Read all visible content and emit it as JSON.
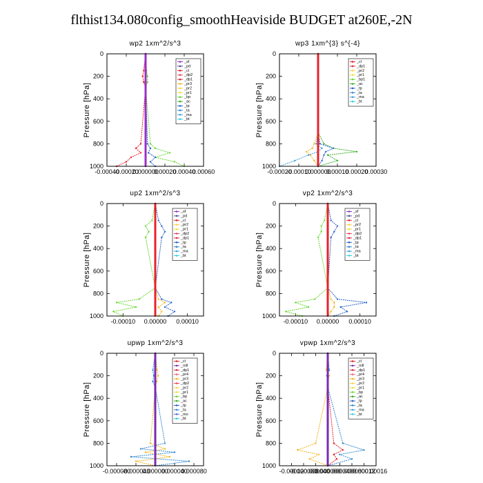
{
  "title": "flthist134.080config_smoothHeaviside  BUDGET at260E,-2N",
  "colors": {
    "sf": "#9a2fc8",
    "pd": "#4a4a9a",
    "cl": "#e8202a",
    "dp2": "#f04060",
    "dp1": "#d82840",
    "pr3": "#f0b820",
    "pr2": "#ffd040",
    "pr1": "#e8e040",
    "bp": "#68d830",
    "ac": "#38b028",
    "tp": "#2860c8",
    "ta": "#3088d0",
    "ma": "#40a0e0",
    "bt": "#30d0e0",
    "mfl": "#7a2ab0",
    "pr4": "#f06878",
    "mo": "#5868d8"
  },
  "chart_data": [
    {
      "name": "wp2",
      "type": "line",
      "title": "wp2   1xm^2/s^3",
      "ylabel": "Pressure [hPa]",
      "ylim": [
        1000,
        0
      ],
      "xlim": [
        -0.0004,
        0.0006
      ],
      "yticks": [
        "0",
        "200",
        "400",
        "600",
        "800",
        "1000"
      ],
      "xticks": [
        "-0.00040",
        "-0.00020",
        "0.000000",
        "0.00020",
        "0.00040",
        "0.00060"
      ],
      "legend": [
        "_sf",
        "_pd",
        "_cl",
        "_dp2",
        "_dp1",
        "_pr3",
        "_pr2",
        "_pr1",
        "_bp",
        "_ac",
        "_tp",
        "_ta",
        "_ma",
        "_bt"
      ],
      "series": [
        {
          "key": "cl",
          "x": [
            0,
            -2e-05,
            -3e-05,
            -2e-05,
            0,
            -5e-05,
            -0.0001,
            -5e-05,
            -0.00015,
            -0.0002,
            -0.0003
          ],
          "y": [
            0,
            150,
            200,
            250,
            300,
            800,
            840,
            880,
            920,
            960,
            1000
          ]
        },
        {
          "key": "bp",
          "x": [
            0,
            1e-05,
            2e-05,
            2e-05,
            0,
            5e-05,
            0.0001,
            0.00025,
            0.0001,
            0.0003,
            0.0004
          ],
          "y": [
            0,
            150,
            200,
            250,
            300,
            800,
            840,
            880,
            920,
            960,
            1000
          ]
        },
        {
          "key": "tp",
          "x": [
            0,
            0,
            0,
            0,
            0,
            2e-05,
            5e-05,
            3e-05,
            0.0001,
            5e-05,
            0.0001
          ],
          "y": [
            0,
            150,
            200,
            250,
            300,
            800,
            840,
            880,
            920,
            960,
            1000
          ]
        },
        {
          "key": "sf",
          "x": [
            0,
            0,
            0,
            0,
            0,
            0,
            0,
            0,
            0,
            0,
            0
          ],
          "y": [
            0,
            150,
            200,
            250,
            300,
            800,
            840,
            880,
            920,
            960,
            1000
          ]
        }
      ]
    },
    {
      "name": "wp3",
      "type": "line",
      "title": "wp3   1xm^{3} s^{-4}",
      "ylabel": "Pressure [hPa]",
      "ylim": [
        1000,
        0
      ],
      "xlim": [
        -0.0002,
        0.0003
      ],
      "yticks": [
        "0",
        "200",
        "400",
        "600",
        "800",
        "1000"
      ],
      "xticks": [
        "-0.00020",
        "-0.00010",
        "0.000000",
        "0.00010",
        "0.00020",
        "0.00030"
      ],
      "legend": [
        "_cl",
        "_dp1",
        "_pr2",
        "_pr1",
        "_bp1",
        "_ac",
        "_tp",
        "_ta",
        "_ma",
        "_bt"
      ],
      "series": [
        {
          "key": "pr3",
          "x": [
            0,
            0,
            0,
            0,
            -2e-05,
            -3e-05,
            -6e-05,
            -4e-05,
            -2e-05,
            0
          ],
          "y": [
            0,
            200,
            400,
            700,
            800,
            840,
            870,
            900,
            950,
            1000
          ]
        },
        {
          "key": "ac",
          "x": [
            0,
            0,
            0,
            0,
            3e-05,
            8e-05,
            0.0002,
            5e-05,
            0.0001,
            0
          ],
          "y": [
            0,
            200,
            400,
            700,
            800,
            840,
            870,
            900,
            950,
            1000
          ]
        },
        {
          "key": "tp",
          "x": [
            0,
            0,
            0,
            0,
            1e-05,
            8e-05,
            4e-05,
            3e-05,
            2e-05,
            0
          ],
          "y": [
            0,
            200,
            400,
            700,
            800,
            840,
            870,
            900,
            950,
            1000
          ]
        },
        {
          "key": "ma",
          "x": [
            0,
            0,
            0,
            0,
            -1e-05,
            2e-05,
            0,
            -5e-05,
            -0.00012,
            -0.0002
          ],
          "y": [
            0,
            200,
            400,
            700,
            800,
            840,
            870,
            900,
            950,
            1000
          ]
        },
        {
          "key": "cl",
          "x": [
            0,
            0,
            0,
            0,
            0,
            0,
            0,
            0,
            0,
            0
          ],
          "y": [
            0,
            200,
            400,
            700,
            800,
            840,
            870,
            900,
            950,
            1000
          ]
        }
      ]
    },
    {
      "name": "up2",
      "type": "line",
      "title": "up2   1xm^2/s^3",
      "ylabel": "Pressure [hPa]",
      "ylim": [
        1000,
        0
      ],
      "xlim": [
        -0.00015,
        0.00015
      ],
      "yticks": [
        "0",
        "200",
        "400",
        "600",
        "800",
        "1000"
      ],
      "xticks": [
        "-0.00010",
        "0.00000",
        "0.00010"
      ],
      "legend": [
        "_sf",
        "_pd",
        "_cl",
        "_pr2",
        "_pr1",
        "_dp2",
        "_dp1",
        "_tp",
        "_ta",
        "_ma",
        "_bt"
      ],
      "series": [
        {
          "key": "bp",
          "x": [
            0,
            -1e-05,
            -3e-05,
            -2e-05,
            -3e-05,
            0,
            -5e-05,
            -0.00012,
            -6e-05,
            -0.00013,
            -0.0001
          ],
          "y": [
            0,
            150,
            200,
            250,
            300,
            750,
            850,
            880,
            920,
            960,
            1000
          ]
        },
        {
          "key": "tp",
          "x": [
            0,
            1e-05,
            2e-05,
            3e-05,
            2e-05,
            0,
            2e-05,
            5e-05,
            3e-05,
            6e-05,
            4e-05
          ],
          "y": [
            0,
            150,
            200,
            250,
            300,
            750,
            850,
            880,
            920,
            960,
            1000
          ]
        },
        {
          "key": "pr3",
          "x": [
            0,
            0,
            0,
            0,
            0,
            0,
            1e-05,
            3e-05,
            1e-05,
            2e-05,
            1e-05
          ],
          "y": [
            0,
            150,
            200,
            250,
            300,
            750,
            850,
            880,
            920,
            960,
            1000
          ]
        },
        {
          "key": "cl",
          "x": [
            0,
            0,
            0,
            0,
            0,
            0,
            0,
            0,
            0,
            0,
            0
          ],
          "y": [
            0,
            150,
            200,
            250,
            300,
            750,
            850,
            880,
            920,
            960,
            1000
          ]
        }
      ]
    },
    {
      "name": "vp2",
      "type": "line",
      "title": "vp2   1xm^2/s^3",
      "ylabel": "Pressure [hPa]",
      "ylim": [
        1000,
        0
      ],
      "xlim": [
        -0.00015,
        0.00015
      ],
      "yticks": [
        "0",
        "200",
        "400",
        "600",
        "800",
        "1000"
      ],
      "xticks": [
        "-0.00010",
        "0.00000",
        "0.00010"
      ],
      "legend": [
        "_sf",
        "_pd",
        "_cl",
        "_pr2",
        "_pr1",
        "_dp2",
        "_dp1",
        "_tp",
        "_ta",
        "_ma",
        "_bt"
      ],
      "series": [
        {
          "key": "bp",
          "x": [
            0,
            -1e-05,
            -2e-05,
            -2e-05,
            -3e-05,
            0,
            -4e-05,
            -0.0001,
            -6e-05,
            -0.00013,
            -8e-05
          ],
          "y": [
            0,
            150,
            200,
            250,
            300,
            750,
            850,
            880,
            920,
            960,
            1000
          ]
        },
        {
          "key": "tp",
          "x": [
            0,
            1e-05,
            3e-05,
            2e-05,
            1e-05,
            0,
            3e-05,
            0.00012,
            4e-05,
            6e-05,
            2e-05
          ],
          "y": [
            0,
            150,
            200,
            250,
            300,
            750,
            850,
            880,
            920,
            960,
            1000
          ]
        },
        {
          "key": "pr3",
          "x": [
            0,
            0,
            0,
            0,
            0,
            0,
            1e-05,
            2e-05,
            2e-05,
            1e-05,
            0
          ],
          "y": [
            0,
            150,
            200,
            250,
            300,
            750,
            850,
            880,
            920,
            960,
            1000
          ]
        },
        {
          "key": "cl",
          "x": [
            0,
            0,
            0,
            0,
            0,
            0,
            0,
            0,
            0,
            0,
            0
          ],
          "y": [
            0,
            150,
            200,
            250,
            300,
            750,
            850,
            880,
            920,
            960,
            1000
          ]
        }
      ]
    },
    {
      "name": "upwp",
      "type": "line",
      "title": "upwp   1xm^2/s^3",
      "ylabel": "Pressure [hPa]",
      "ylim": [
        1000,
        0
      ],
      "xlim": [
        -0.0001,
        0.0001
      ],
      "yticks": [
        "0",
        "200",
        "400",
        "600",
        "800",
        "1000"
      ],
      "xticks": [
        "-0.000080",
        "-0.000040",
        "0.000000",
        "0.000040",
        "0.000080"
      ],
      "legend": [
        "_cl",
        "_mfl",
        "_dp1",
        "_pr4",
        "_pr3",
        "_dp2",
        "_pr2",
        "_pr1",
        "_bp",
        "_ac",
        "_tp",
        "_ta",
        "_mo",
        "_bt"
      ],
      "series": [
        {
          "key": "ta",
          "x": [
            0,
            -5e-06,
            -3e-06,
            -5e-06,
            0,
            2e-05,
            -3e-05,
            4e-05,
            -5e-05,
            7e-05,
            0
          ],
          "y": [
            0,
            150,
            200,
            250,
            300,
            800,
            850,
            880,
            920,
            960,
            1000
          ]
        },
        {
          "key": "pr3",
          "x": [
            0,
            4e-06,
            6e-06,
            3e-06,
            0,
            -1e-05,
            2e-05,
            -2e-05,
            3e-05,
            -4e-05,
            0
          ],
          "y": [
            0,
            150,
            200,
            250,
            300,
            800,
            850,
            880,
            920,
            960,
            1000
          ]
        },
        {
          "key": "mfl",
          "x": [
            0,
            0,
            0,
            0,
            0,
            0,
            0,
            0,
            0,
            0,
            0
          ],
          "y": [
            0,
            150,
            200,
            250,
            300,
            800,
            850,
            880,
            920,
            960,
            1000
          ]
        }
      ]
    },
    {
      "name": "vpwp",
      "type": "line",
      "title": "vpwp   1xm^2/s^3",
      "ylabel": "Pressure [hPa]",
      "ylim": [
        1000,
        0
      ],
      "xlim": [
        -0.00016,
        0.00016
      ],
      "yticks": [
        "0",
        "200",
        "400",
        "600",
        "800",
        "1000"
      ],
      "xticks": [
        "-0.00012",
        "-0.000080",
        "-0.000040",
        "0.000000",
        "0.000040",
        "0.000080",
        "0.00012",
        "0.00016"
      ],
      "legend": [
        "_cl",
        "_mfl",
        "_dp1",
        "_pr4",
        "_pr3",
        "_pr2",
        "_pr1",
        "_bp",
        "_ac",
        "_tp",
        "_ta",
        "_ma",
        "_bt"
      ],
      "series": [
        {
          "key": "pr3",
          "x": [
            0,
            -5e-06,
            5e-06,
            0,
            0,
            -4e-05,
            -0.0001,
            -3e-05,
            -6e-05,
            0
          ],
          "y": [
            0,
            150,
            200,
            250,
            300,
            800,
            860,
            900,
            940,
            1000
          ]
        },
        {
          "key": "ta",
          "x": [
            0,
            5e-06,
            -3e-06,
            0,
            0,
            5e-05,
            0.00012,
            4e-05,
            8e-05,
            0
          ],
          "y": [
            0,
            150,
            200,
            250,
            300,
            800,
            860,
            900,
            940,
            1000
          ]
        },
        {
          "key": "cl",
          "x": [
            0,
            0,
            0,
            0,
            0,
            2e-05,
            5e-05,
            2e-05,
            3e-05,
            0
          ],
          "y": [
            0,
            150,
            200,
            250,
            300,
            800,
            860,
            900,
            940,
            1000
          ]
        },
        {
          "key": "mfl",
          "x": [
            0,
            0,
            0,
            0,
            0,
            0,
            0,
            0,
            0,
            0
          ],
          "y": [
            0,
            150,
            200,
            250,
            300,
            800,
            860,
            900,
            940,
            1000
          ]
        }
      ]
    }
  ]
}
